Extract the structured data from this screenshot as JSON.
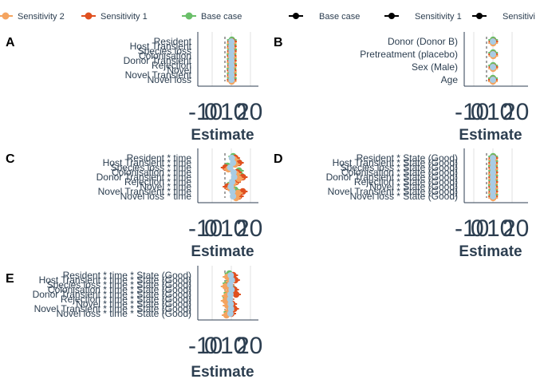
{
  "colors": {
    "base_case": "#6abf69",
    "sensitivity_1": "#e0501f",
    "sensitivity_2": "#f4a460",
    "black": "#000000",
    "light_blue": "#a8cce4",
    "axis": "#2c3e50",
    "grid": "#e2e2e2"
  },
  "legend_left": [
    {
      "label": "Sensitivity 2",
      "color_key": "sensitivity_2"
    },
    {
      "label": "Sensitivity 1",
      "color_key": "sensitivity_1"
    },
    {
      "label": "Base case",
      "color_key": "base_case"
    }
  ],
  "legend_right": [
    {
      "label": "Base case",
      "color_key": "black"
    },
    {
      "label": "Sensitivity 1",
      "color_key": "black"
    },
    {
      "label": "Sensitivi",
      "color_key": "black"
    }
  ],
  "chart_data": [
    {
      "panel": "A",
      "type": "scatter",
      "xlabel": "Estimate",
      "xticks": [
        "-10",
        "0",
        "10",
        "20"
      ],
      "xlim": [
        -10,
        20
      ],
      "categories": [
        "Resident",
        "Host Transient",
        "Species loss",
        "Colonisation",
        "Donor Transient",
        "Rejection",
        "Novel",
        "Novel Transient",
        "Novel loss"
      ],
      "series": [
        {
          "name": "Base case",
          "values": [
            0.3,
            0.2,
            0.4,
            0.1,
            0.2,
            0.3,
            0.1,
            0.2,
            0.3
          ]
        },
        {
          "name": "Sensitivity 1",
          "values": [
            0.4,
            0.3,
            0.3,
            0.2,
            0.3,
            0.4,
            0.2,
            0.3,
            0.2
          ]
        },
        {
          "name": "Sensitivity 2",
          "values": [
            0.2,
            0.1,
            0.2,
            0.3,
            0.1,
            0.2,
            0.3,
            0.1,
            0.2
          ]
        }
      ]
    },
    {
      "panel": "B",
      "type": "scatter",
      "xlabel": "Estimate",
      "xticks": [
        "-10",
        "0",
        "10",
        "20"
      ],
      "xlim": [
        -10,
        20
      ],
      "categories": [
        "Donor (Donor B)",
        "Pretreatment (placebo)",
        "Sex (Male)",
        "Age"
      ],
      "series": [
        {
          "name": "Base case",
          "values": [
            0.1,
            0.1,
            0.1,
            0.0
          ]
        },
        {
          "name": "Sensitivity 1",
          "values": [
            0.2,
            0.1,
            0.2,
            0.0
          ]
        },
        {
          "name": "Sensitivity 2",
          "values": [
            0.1,
            0.2,
            0.1,
            0.0
          ]
        }
      ]
    },
    {
      "panel": "C",
      "type": "scatter",
      "xlabel": "Estimate",
      "xticks": [
        "-10",
        "0",
        "10",
        "20"
      ],
      "xlim": [
        -10,
        20
      ],
      "categories": [
        "Resident * time",
        "Host Transient * time",
        "Species loss * time",
        "Colonisation * time",
        "Donor Transient * time",
        "Rejection * time",
        "Novel * time",
        "Novel Transient * time",
        "Novel loss * time"
      ],
      "series": [
        {
          "name": "Base case",
          "values": [
            1.0,
            3.0,
            -2.0,
            4.0,
            5.0,
            1.5,
            -1.0,
            2.0,
            3.0
          ]
        },
        {
          "name": "Sensitivity 1",
          "values": [
            2.0,
            4.0,
            -3.0,
            3.0,
            6.0,
            2.5,
            -2.0,
            6.0,
            4.0
          ]
        },
        {
          "name": "Sensitivity 2",
          "values": [
            1.5,
            2.0,
            -1.5,
            2.5,
            4.0,
            1.0,
            -0.5,
            3.5,
            2.5
          ]
        }
      ]
    },
    {
      "panel": "D",
      "type": "scatter",
      "xlabel": "Estimate",
      "xticks": [
        "-10",
        "0",
        "10",
        "20"
      ],
      "xlim": [
        -10,
        20
      ],
      "categories": [
        "Resident * State (Good)",
        "Host Transient * State (Good)",
        "Species loss * State (Good)",
        "Colonisation * State (Good)",
        "Donor Transient * State (Good)",
        "Rejection * State (Good)",
        "Novel * State (Good)",
        "Novel Transient * State (Good)",
        "Novel loss * State (Good)"
      ],
      "series": [
        {
          "name": "Base case",
          "values": [
            0.1,
            0.2,
            0.0,
            0.1,
            0.2,
            0.1,
            0.0,
            0.1,
            0.2
          ]
        },
        {
          "name": "Sensitivity 1",
          "values": [
            0.2,
            0.1,
            0.1,
            0.2,
            0.1,
            0.2,
            0.1,
            0.2,
            0.1
          ]
        },
        {
          "name": "Sensitivity 2",
          "values": [
            0.0,
            0.1,
            0.2,
            0.0,
            0.1,
            0.0,
            0.2,
            0.0,
            0.1
          ]
        }
      ]
    },
    {
      "panel": "E",
      "type": "scatter",
      "xlabel": "Estimate",
      "xticks": [
        "-10",
        "0",
        "10",
        "20"
      ],
      "xlim": [
        -10,
        20
      ],
      "categories": [
        "Resident * time * State (Good)",
        "Host Transient * time * State (Good)",
        "Species loss * time * State (Good)",
        "Colonisation * time * State (Good)",
        "Donor Transient * time * State (Good)",
        "Rejection * time * State (Good)",
        "Novel * time * State (Good)",
        "Novel Transient * time * State (Good)",
        "Novel loss * time * State (Good)"
      ],
      "series": [
        {
          "name": "Base case",
          "values": [
            -1.0,
            1.0,
            -2.0,
            0.5,
            -1.5,
            -2.0,
            -1.0,
            -0.5,
            -1.5
          ]
        },
        {
          "name": "Sensitivity 1",
          "values": [
            1.0,
            2.0,
            -1.0,
            1.5,
            2.5,
            -1.0,
            0.5,
            1.5,
            0.0
          ]
        },
        {
          "name": "Sensitivity 2",
          "values": [
            -2.0,
            -0.5,
            -3.0,
            -1.0,
            -2.5,
            -3.0,
            -2.0,
            -1.0,
            -2.5
          ]
        }
      ]
    }
  ]
}
